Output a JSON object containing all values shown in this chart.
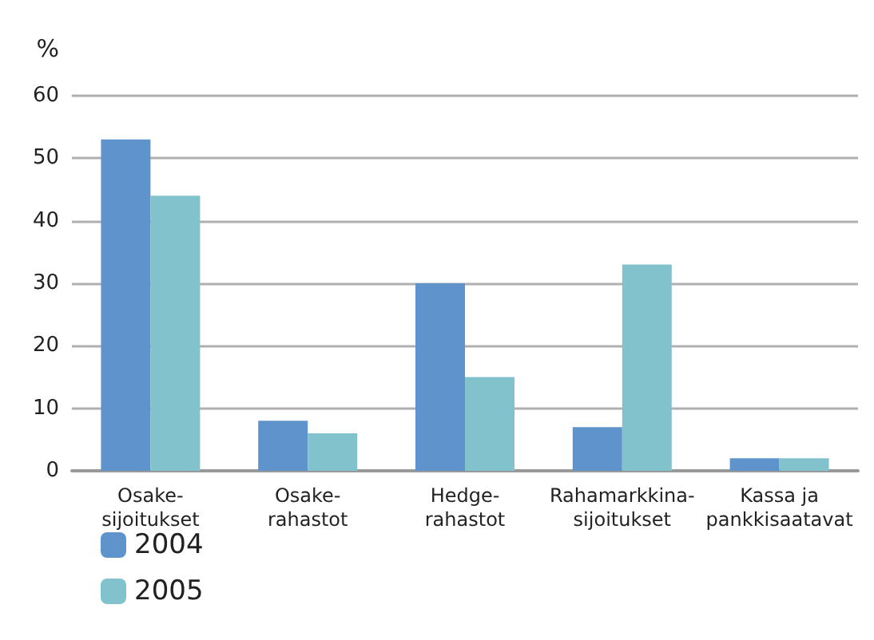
{
  "chart_data": {
    "type": "bar",
    "ylabel": "%",
    "categories": [
      "Osake-\nsijoitukset",
      "Osake-\nrahastot",
      "Hedge-\nrahastot",
      "Rahamarkkina-\nsijoitukset",
      "Kassa ja\npankkisaatavat"
    ],
    "series": [
      {
        "name": "2004",
        "color": "#5f93cc",
        "values": [
          53,
          8,
          30,
          7,
          2
        ]
      },
      {
        "name": "2005",
        "color": "#82c2cc",
        "values": [
          44,
          6,
          15,
          33,
          2
        ]
      }
    ],
    "ylim": [
      0,
      60
    ],
    "yticks": [
      0,
      10,
      20,
      30,
      40,
      50,
      60
    ],
    "grid": "y",
    "legend": "bottom left"
  }
}
